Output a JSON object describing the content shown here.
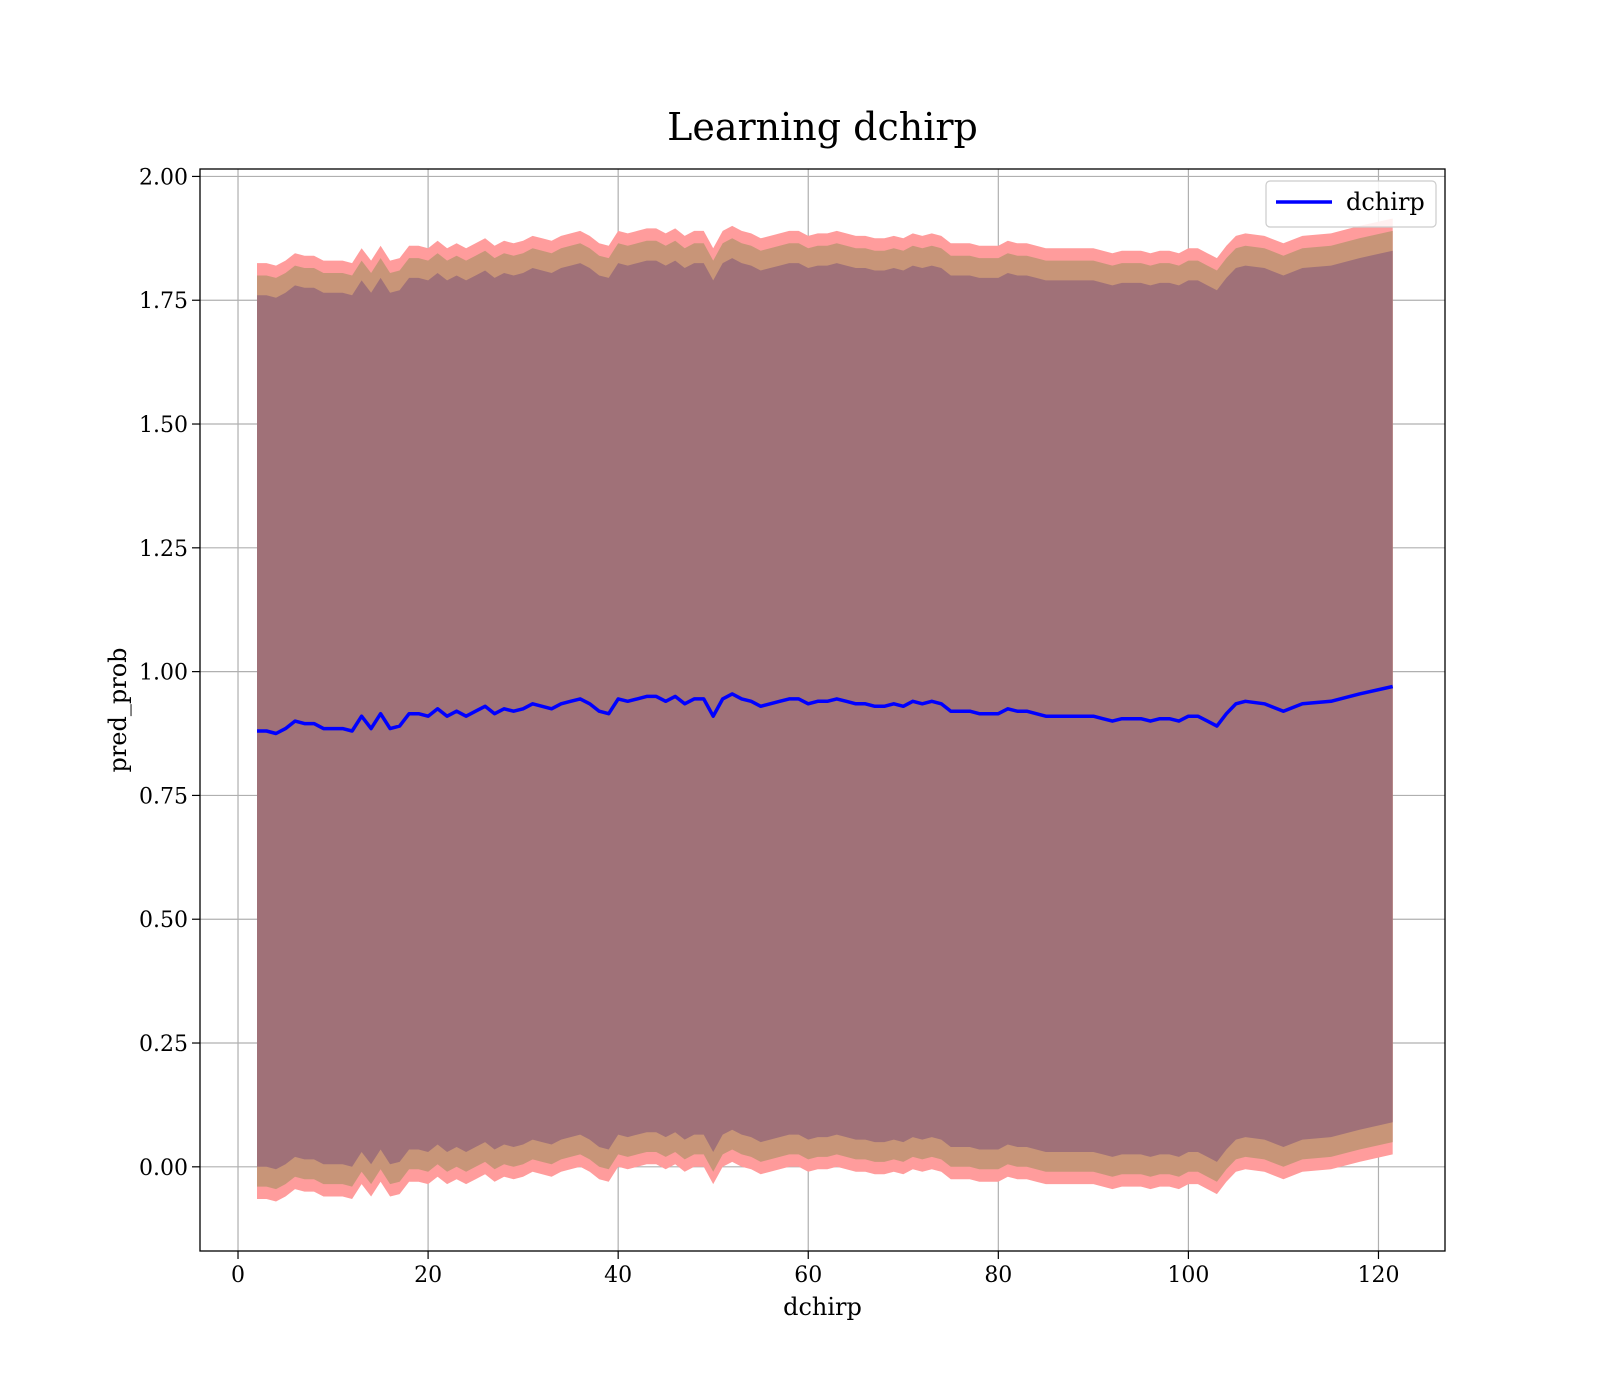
{
  "chart_data": {
    "type": "area",
    "title": "Learning dchirp",
    "xlabel": "dchirp",
    "ylabel": "pred_prob",
    "xlim": [
      -4,
      127
    ],
    "ylim": [
      -0.17,
      2.015
    ],
    "x_ticks": [
      0,
      20,
      40,
      60,
      80,
      100,
      120
    ],
    "y_ticks": [
      0.0,
      0.25,
      0.5,
      0.75,
      1.0,
      1.25,
      1.5,
      1.75,
      2.0
    ],
    "y_tick_labels": [
      "0.00",
      "0.25",
      "0.50",
      "0.75",
      "1.00",
      "1.25",
      "1.50",
      "1.75",
      "2.00"
    ],
    "grid": true,
    "legend": {
      "position": "top-right",
      "entries": [
        "dchirp"
      ]
    },
    "colors": {
      "line": "#0000ff",
      "outer_band": "#ff9c9c",
      "middle_band": "#c89578",
      "inner_band": "#a07178"
    },
    "series": [
      {
        "name": "dchirp",
        "x": [
          2,
          3,
          4,
          5,
          6,
          7,
          8,
          9,
          10,
          11,
          12,
          13,
          14,
          15,
          16,
          17,
          18,
          19,
          20,
          21,
          22,
          23,
          24,
          25,
          26,
          27,
          28,
          29,
          30,
          31,
          32,
          33,
          34,
          35,
          36,
          37,
          38,
          39,
          40,
          41,
          42,
          43,
          44,
          45,
          46,
          47,
          48,
          49,
          50,
          51,
          52,
          53,
          54,
          55,
          56,
          57,
          58,
          59,
          60,
          61,
          62,
          63,
          64,
          65,
          66,
          67,
          68,
          69,
          70,
          71,
          72,
          73,
          74,
          75,
          76,
          77,
          78,
          79,
          80,
          81,
          82,
          83,
          84,
          85,
          86,
          87,
          88,
          89,
          90,
          91,
          92,
          93,
          94,
          95,
          96,
          97,
          98,
          99,
          100,
          101,
          102,
          103,
          104,
          105,
          106,
          108,
          110,
          112,
          115,
          118,
          121.5
        ],
        "y": [
          0.88,
          0.88,
          0.875,
          0.885,
          0.9,
          0.895,
          0.895,
          0.885,
          0.885,
          0.885,
          0.88,
          0.91,
          0.885,
          0.915,
          0.885,
          0.89,
          0.915,
          0.915,
          0.91,
          0.925,
          0.91,
          0.92,
          0.91,
          0.92,
          0.93,
          0.915,
          0.925,
          0.92,
          0.925,
          0.935,
          0.93,
          0.925,
          0.935,
          0.94,
          0.945,
          0.935,
          0.92,
          0.915,
          0.945,
          0.94,
          0.945,
          0.95,
          0.95,
          0.94,
          0.95,
          0.935,
          0.945,
          0.945,
          0.91,
          0.945,
          0.955,
          0.945,
          0.94,
          0.93,
          0.935,
          0.94,
          0.945,
          0.945,
          0.935,
          0.94,
          0.94,
          0.945,
          0.94,
          0.935,
          0.935,
          0.93,
          0.93,
          0.935,
          0.93,
          0.94,
          0.935,
          0.94,
          0.935,
          0.92,
          0.92,
          0.92,
          0.915,
          0.915,
          0.915,
          0.925,
          0.92,
          0.92,
          0.915,
          0.91,
          0.91,
          0.91,
          0.91,
          0.91,
          0.91,
          0.905,
          0.9,
          0.905,
          0.905,
          0.905,
          0.9,
          0.905,
          0.905,
          0.9,
          0.91,
          0.91,
          0.9,
          0.89,
          0.915,
          0.935,
          0.94,
          0.935,
          0.92,
          0.935,
          0.94,
          0.955,
          0.97
        ],
        "band_offsets": {
          "outer": 0.945,
          "middle": 0.92,
          "inner": 0.88
        }
      }
    ]
  }
}
